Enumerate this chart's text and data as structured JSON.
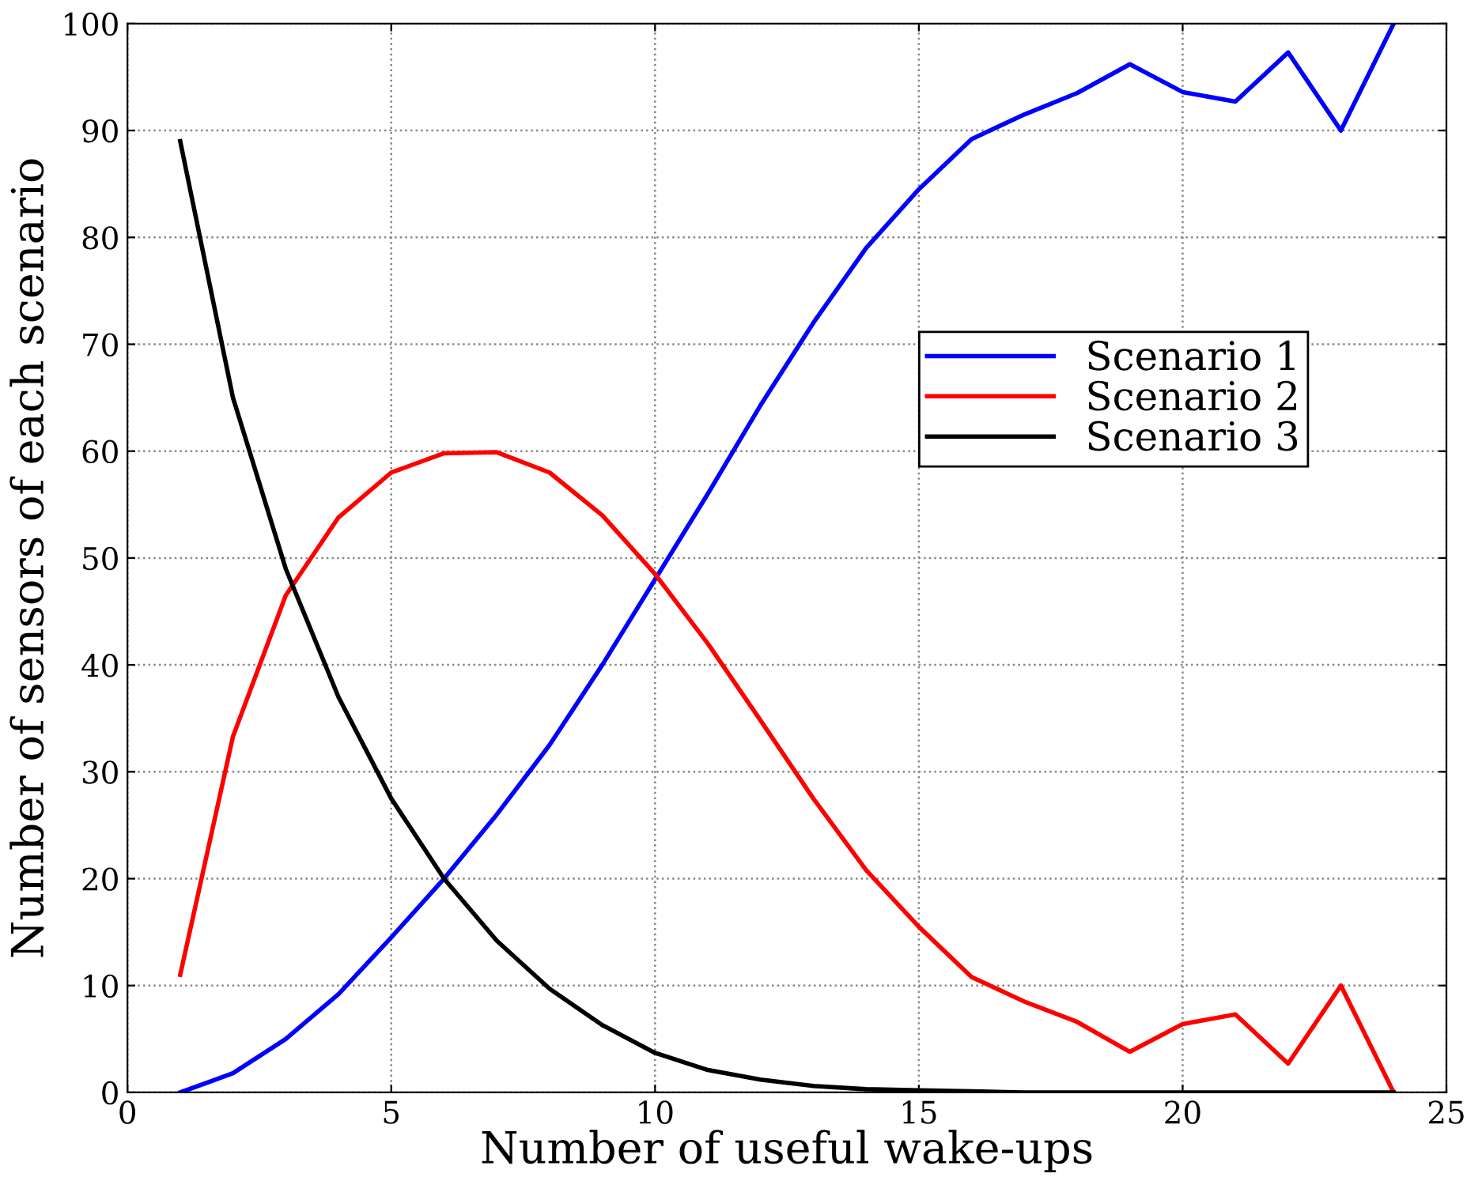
{
  "chart_data": {
    "type": "line",
    "xlabel": "Number of useful wake-ups",
    "ylabel": "Number of sensors of each scenario",
    "x": [
      1,
      2,
      3,
      4,
      5,
      6,
      7,
      8,
      9,
      10,
      11,
      12,
      13,
      14,
      15,
      16,
      17,
      18,
      19,
      20,
      21,
      22,
      23,
      24
    ],
    "xlim": [
      0,
      25
    ],
    "xticks": [
      0,
      5,
      10,
      15,
      20,
      25
    ],
    "ylim": [
      0,
      100
    ],
    "yticks": [
      0,
      10,
      20,
      30,
      40,
      50,
      60,
      70,
      80,
      90,
      100
    ],
    "grid": true,
    "legend": "right",
    "marker": "none",
    "line_style": "solid",
    "series": [
      {
        "name": "Scenario 1",
        "color": "#0000ff",
        "values": [
          0,
          1.8,
          5,
          9.2,
          14.5,
          20,
          26,
          32.5,
          40,
          48,
          56,
          64.3,
          72,
          79,
          84.5,
          89.2,
          91.5,
          93.5,
          96.2,
          93.6,
          92.7,
          97.3,
          90,
          100
        ]
      },
      {
        "name": "Scenario 2",
        "color": "#ff0000",
        "values": [
          11,
          33.3,
          46.5,
          53.8,
          58,
          59.8,
          59.9,
          58,
          54,
          48.5,
          42,
          34.8,
          27.5,
          20.8,
          15.5,
          10.8,
          8.5,
          6.6,
          3.8,
          6.4,
          7.3,
          2.7,
          10,
          0
        ]
      },
      {
        "name": "Scenario 3",
        "color": "#000000",
        "values": [
          89,
          65,
          49,
          37,
          27.5,
          20,
          14.2,
          9.7,
          6.3,
          3.7,
          2.1,
          1.2,
          0.6,
          0.3,
          0.2,
          0.1,
          0,
          0,
          0,
          0,
          0,
          0,
          0,
          0
        ]
      }
    ]
  }
}
